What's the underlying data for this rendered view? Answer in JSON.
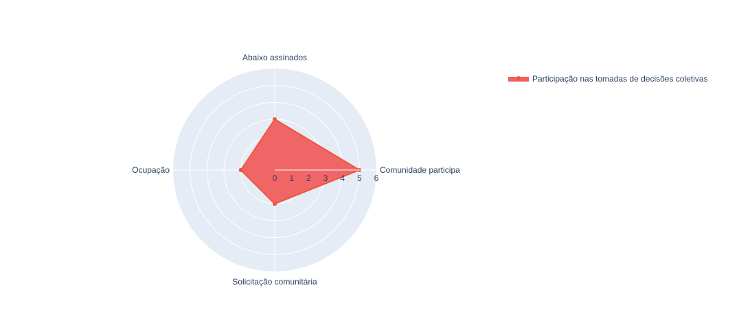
{
  "chart_data": {
    "type": "radar",
    "categories": [
      "Comunidade participa",
      "Abaixo assinados",
      "Ocupação",
      "Solicitação comunitária"
    ],
    "series": [
      {
        "name": "Participação nas tomadas de decisões coletivas",
        "values": [
          5,
          3,
          2,
          2
        ],
        "color": "#ef553b",
        "fill_color": "#f05f5f",
        "fill_opacity": 0.95
      }
    ],
    "radial_axis": {
      "range": [
        0,
        6
      ],
      "ticks": [
        "0",
        "1",
        "2",
        "3",
        "4",
        "5",
        "6"
      ],
      "direction": "counterclockwise",
      "rotation": 0
    },
    "polar_background": "#e5ecf6",
    "grid_color": "#ffffff",
    "legend_position": "top-right",
    "title": ""
  }
}
